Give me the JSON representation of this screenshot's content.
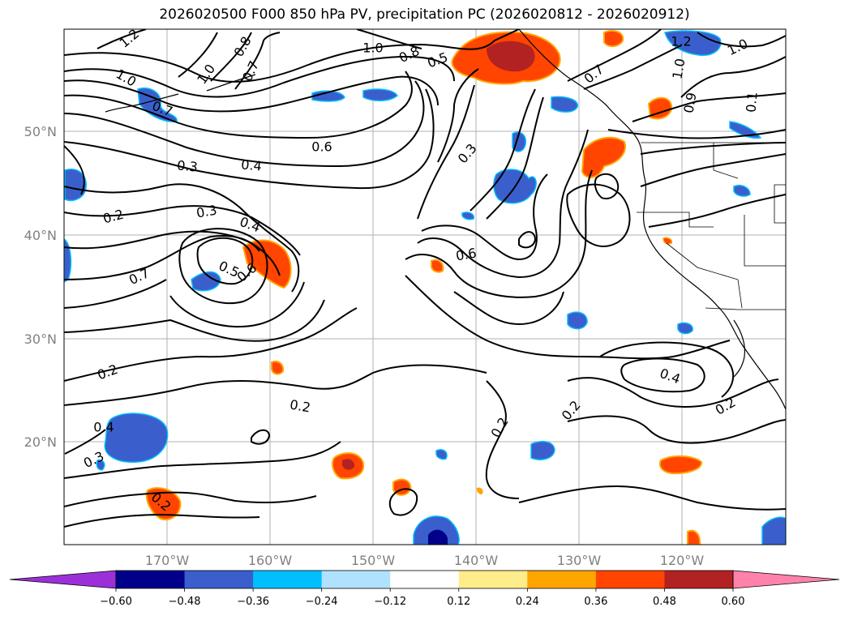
{
  "title": "2026020500 F000 850 hPa PV, precipitation PC (2026020812 - 2026020912)",
  "lat_ticks": [
    "50°N",
    "40°N",
    "30°N",
    "20°N"
  ],
  "lon_ticks": [
    "170°W",
    "160°W",
    "150°W",
    "140°W",
    "130°W",
    "120°W"
  ],
  "contour_labels": [
    "1.2",
    "1.0",
    "0.8",
    "0.5",
    "0.7",
    "1.0",
    "1.0",
    "0.7",
    "0.6",
    "0.4",
    "0.3",
    "0.2",
    "0.3",
    "0.4",
    "0.5",
    "0.6",
    "0.7",
    "0.3",
    "0.6",
    "0.2",
    "0.2",
    "0.4",
    "0.2",
    "0.2",
    "0.2",
    "0.4",
    "0.3",
    "0.2",
    "1.2",
    "1.0",
    "1.0",
    "0.9",
    "0.1",
    "0.7",
    "0.8"
  ],
  "colorbar": {
    "tick_labels": [
      "−0.60",
      "−0.48",
      "−0.36",
      "−0.24",
      "−0.12",
      "0.12",
      "0.24",
      "0.36",
      "0.48",
      "0.60"
    ],
    "colors": [
      "#9b30d9",
      "#00008b",
      "#3a5fcd",
      "#00bfff",
      "#b0e2ff",
      "#ffffff",
      "#ffec8b",
      "#ffa500",
      "#ff4500",
      "#b22222",
      "#ff82ab"
    ]
  }
}
